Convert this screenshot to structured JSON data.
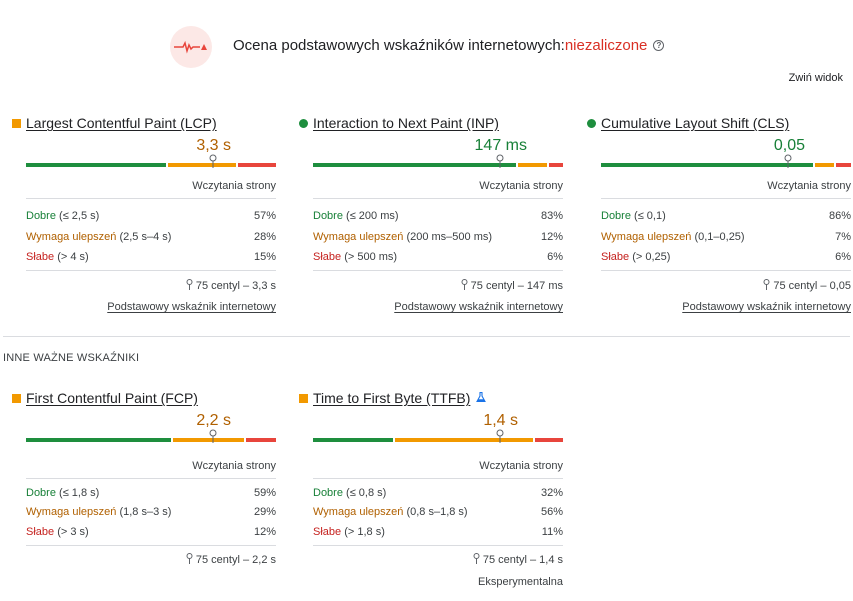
{
  "header": {
    "title_prefix": "Ocena podstawowych wskaźników internetowych:",
    "title_status": "niezaliczone",
    "status_icon": "fail-pulse-icon",
    "info_icon": "info-icon",
    "collapse_label": "Zwiń widok"
  },
  "colors": {
    "good": "#1e8e3e",
    "needs_improvement": "#f29900",
    "poor": "#e8453c",
    "fail_text": "#d93025"
  },
  "other_section_title": "INNE WAŻNE WSKAŹNIKI",
  "metrics": [
    {
      "name": "Largest Contentful Paint (LCP)",
      "status": "needs-improvement",
      "value": "3,3 s",
      "sub_label": "Wczytania strony",
      "dist": [
        0.57,
        0.28,
        0.15
      ],
      "p75_pos": 0.755,
      "rows": [
        {
          "cat": "Dobre",
          "range": " (≤ 2,5 s)",
          "pct": "57%"
        },
        {
          "cat": "Wymaga ulepszeń",
          "range": " (2,5 s–4 s)",
          "pct": "28%"
        },
        {
          "cat": "Słabe",
          "range": " (> 4 s)",
          "pct": "15%"
        }
      ],
      "p75": "75 centyl – 3,3 s",
      "footer": "Podstawowy wskaźnik internetowy"
    },
    {
      "name": "Interaction to Next Paint (INP)",
      "status": "good",
      "value": "147 ms",
      "sub_label": "Wczytania strony",
      "dist": [
        0.83,
        0.12,
        0.06
      ],
      "p75_pos": 0.75,
      "rows": [
        {
          "cat": "Dobre",
          "range": " (≤ 200 ms)",
          "pct": "83%"
        },
        {
          "cat": "Wymaga ulepszeń",
          "range": " (200 ms–500 ms)",
          "pct": "12%"
        },
        {
          "cat": "Słabe",
          "range": " (> 500 ms)",
          "pct": "6%"
        }
      ],
      "p75": "75 centyl – 147 ms",
      "footer": "Podstawowy wskaźnik internetowy"
    },
    {
      "name": "Cumulative Layout Shift (CLS)",
      "status": "good",
      "value": "0,05",
      "sub_label": "Wczytania strony",
      "dist": [
        0.86,
        0.07,
        0.06
      ],
      "p75_pos": 0.75,
      "rows": [
        {
          "cat": "Dobre",
          "range": " (≤ 0,1)",
          "pct": "86%"
        },
        {
          "cat": "Wymaga ulepszeń",
          "range": " (0,1–0,25)",
          "pct": "7%"
        },
        {
          "cat": "Słabe",
          "range": " (> 0,25)",
          "pct": "6%"
        }
      ],
      "p75": "75 centyl – 0,05",
      "footer": "Podstawowy wskaźnik internetowy"
    },
    {
      "name": "First Contentful Paint (FCP)",
      "status": "needs-improvement",
      "value": "2,2 s",
      "sub_label": "Wczytania strony",
      "dist": [
        0.59,
        0.29,
        0.12
      ],
      "p75_pos": 0.75,
      "rows": [
        {
          "cat": "Dobre",
          "range": " (≤ 1,8 s)",
          "pct": "59%"
        },
        {
          "cat": "Wymaga ulepszeń",
          "range": " (1,8 s–3 s)",
          "pct": "29%"
        },
        {
          "cat": "Słabe",
          "range": " (> 3 s)",
          "pct": "12%"
        }
      ],
      "p75": "75 centyl – 2,2 s",
      "footer": ""
    },
    {
      "name": "Time to First Byte (TTFB)",
      "status": "needs-improvement",
      "value": "1,4 s",
      "sub_label": "Wczytania strony",
      "lab_icon": "flask-icon",
      "dist": [
        0.32,
        0.56,
        0.11
      ],
      "p75_pos": 0.75,
      "rows": [
        {
          "cat": "Dobre",
          "range": " (≤ 0,8 s)",
          "pct": "32%"
        },
        {
          "cat": "Wymaga ulepszeń",
          "range": " (0,8 s–1,8 s)",
          "pct": "56%"
        },
        {
          "cat": "Słabe",
          "range": " (> 1,8 s)",
          "pct": "11%"
        }
      ],
      "p75": "75 centyl – 1,4 s",
      "footer": "Eksperymentalna"
    }
  ]
}
